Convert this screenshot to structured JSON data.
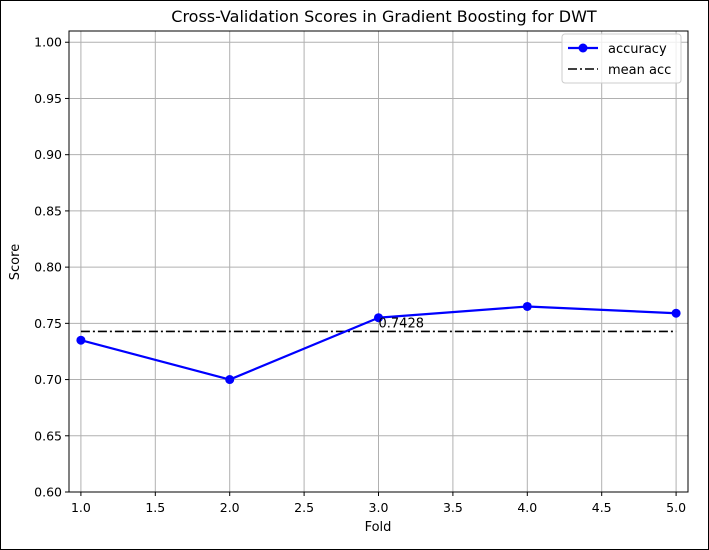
{
  "chart_data": {
    "type": "line",
    "title": "Cross-Validation Scores in Gradient Boosting for DWT",
    "xlabel": "Fold",
    "ylabel": "Score",
    "xlim": [
      0.92,
      5.08
    ],
    "ylim": [
      0.6,
      1.01
    ],
    "x_ticks": [
      1.0,
      1.5,
      2.0,
      2.5,
      3.0,
      3.5,
      4.0,
      4.5,
      5.0
    ],
    "x_tick_labels": [
      "1.0",
      "1.5",
      "2.0",
      "2.5",
      "3.0",
      "3.5",
      "4.0",
      "4.5",
      "5.0"
    ],
    "y_ticks": [
      0.6,
      0.65,
      0.7,
      0.75,
      0.8,
      0.85,
      0.9,
      0.95,
      1.0
    ],
    "y_tick_labels": [
      "0.60",
      "0.65",
      "0.70",
      "0.75",
      "0.80",
      "0.85",
      "0.90",
      "0.95",
      "1.00"
    ],
    "grid": true,
    "legend_position": "top-right",
    "series": [
      {
        "name": "accuracy",
        "x": [
          1,
          2,
          3,
          4,
          5
        ],
        "values": [
          0.735,
          0.7,
          0.755,
          0.765,
          0.759
        ],
        "color": "#0000ff",
        "marker": "circle",
        "line_style": "solid"
      },
      {
        "name": "mean acc",
        "x": [
          1,
          5
        ],
        "values": [
          0.7428,
          0.7428
        ],
        "color": "#000000",
        "marker": "none",
        "line_style": "dashdot"
      }
    ],
    "annotations": [
      {
        "text": "0.7428",
        "x": 3.0,
        "y": 0.7428
      }
    ]
  }
}
